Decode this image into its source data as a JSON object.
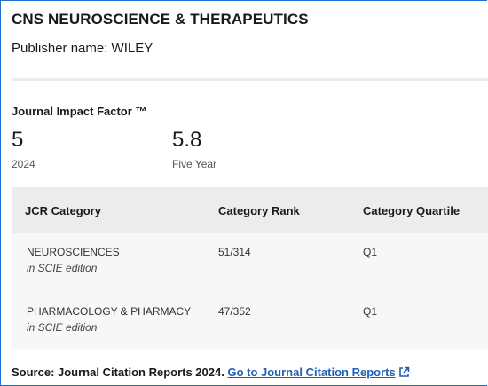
{
  "journal": {
    "title": "CNS NEUROSCIENCE & THERAPEUTICS",
    "publisher": "Publisher name: WILEY"
  },
  "impact_factor": {
    "label": "Journal Impact Factor ™",
    "value": "5",
    "year": "2024",
    "five_year_value": "5.8",
    "five_year_label": "Five Year"
  },
  "table": {
    "headers": [
      "JCR Category",
      "Category Rank",
      "Category Quartile"
    ],
    "rows": [
      {
        "category": "NEUROSCIENCES",
        "edition": "in SCIE edition",
        "rank": "51/314",
        "quartile": "Q1"
      },
      {
        "category": "PHARMACOLOGY & PHARMACY",
        "edition": "in SCIE edition",
        "rank": "47/352",
        "quartile": "Q1"
      }
    ]
  },
  "footer": {
    "source_text": "Source: Journal Citation Reports  2024.",
    "link_text": "Go to Journal Citation Reports",
    "icon": "external-link-icon"
  },
  "colors": {
    "frame": "#1f6fd1",
    "link": "#1f5fb8",
    "table_header_bg": "#ececec",
    "table_bg": "#f7f7f7"
  }
}
